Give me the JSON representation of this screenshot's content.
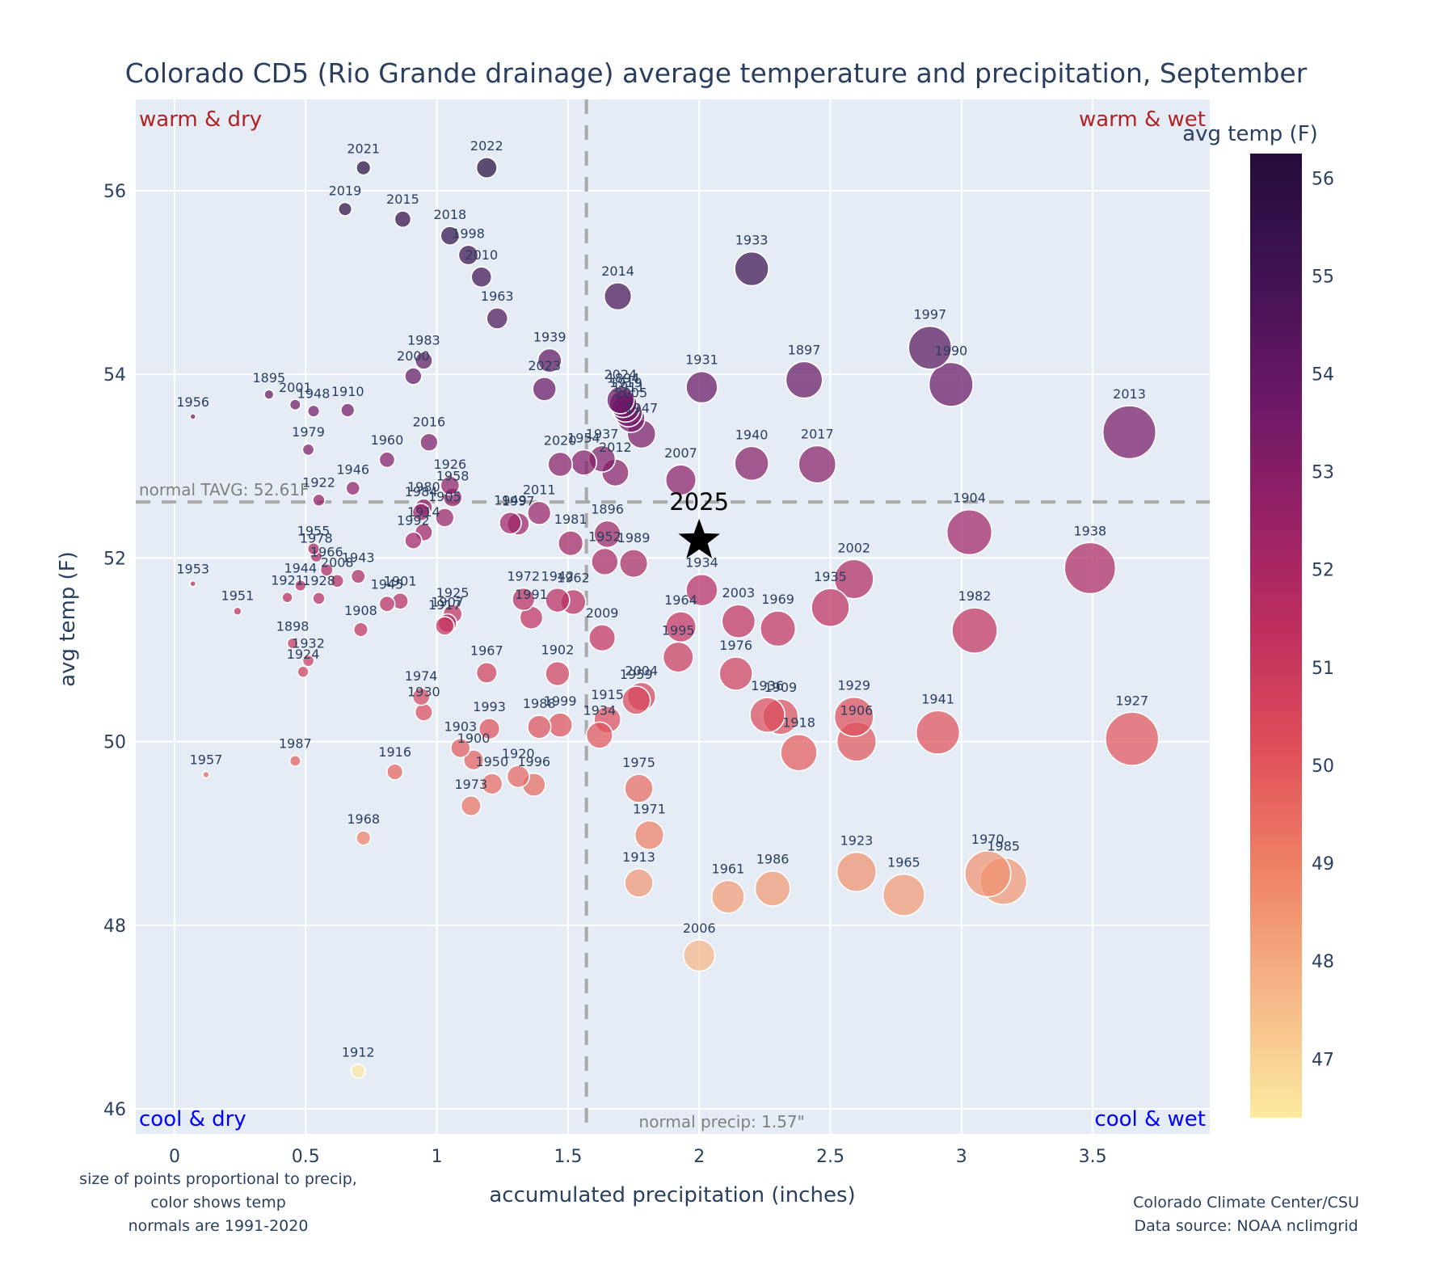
{
  "chart_data": {
    "type": "scatter",
    "title": "Colorado CD5 (Rio Grande drainage) average temperature and precipitation, September",
    "xlabel": "accumulated precipitation (inches)",
    "ylabel": "avg temp (F)",
    "xlim": [
      -0.15,
      3.95
    ],
    "ylim": [
      45.7,
      56.99
    ],
    "xticks": [
      0,
      0.5,
      1,
      1.5,
      2,
      2.5,
      3,
      3.5
    ],
    "xtick_labels": [
      "0",
      "0.5",
      "1",
      "1.5",
      "2",
      "2.5",
      "3",
      "3.5"
    ],
    "yticks": [
      46,
      48,
      50,
      52,
      54,
      56
    ],
    "ytick_labels": [
      "46",
      "48",
      "50",
      "52",
      "54",
      "56"
    ],
    "grid": true,
    "normal_temp": 52.61,
    "normal_temp_label": "normal TAVG: 52.61F",
    "normal_precip": 1.57,
    "normal_precip_label": "normal precip: 1.57\"",
    "quadrant_labels": {
      "top_left": "warm & dry",
      "top_right": "warm & wet",
      "bottom_left": "cool & dry",
      "bottom_right": "cool & wet"
    },
    "colorbar": {
      "title": "avg temp (F)",
      "range": [
        46.4,
        56.25
      ],
      "ticks": [
        47,
        48,
        49,
        50,
        51,
        52,
        53,
        54,
        55,
        56
      ],
      "tick_labels": [
        "47",
        "48",
        "49",
        "50",
        "51",
        "52",
        "53",
        "54",
        "55",
        "56"
      ],
      "colorscale": [
        "#fcea9f",
        "#f6b889",
        "#ef8566",
        "#e0525a",
        "#c1305e",
        "#962166",
        "#6a1866",
        "#3f1351",
        "#240c3c"
      ]
    },
    "highlight": {
      "label": "2025",
      "x": 2.0,
      "y": 52.19,
      "marker": "star",
      "color": "#000000"
    },
    "footnote_left": [
      "size of points proportional to precip,",
      "color shows temp",
      "normals are 1991-2020"
    ],
    "footnote_right": [
      "Colorado Climate Center/CSU",
      "Data source: NOAA nclimgrid"
    ],
    "points": [
      {
        "year": "2021",
        "x": 0.72,
        "y": 56.25
      },
      {
        "year": "2022",
        "x": 1.19,
        "y": 56.25
      },
      {
        "year": "2019",
        "x": 0.65,
        "y": 55.8
      },
      {
        "year": "2015",
        "x": 0.87,
        "y": 55.69
      },
      {
        "year": "2018",
        "x": 1.05,
        "y": 55.51
      },
      {
        "year": "1998",
        "x": 1.12,
        "y": 55.3
      },
      {
        "year": "2010",
        "x": 1.17,
        "y": 55.06
      },
      {
        "year": "1963",
        "x": 1.23,
        "y": 54.61
      },
      {
        "year": "2014",
        "x": 1.69,
        "y": 54.85
      },
      {
        "year": "1933",
        "x": 2.2,
        "y": 55.15
      },
      {
        "year": "1997",
        "x": 2.88,
        "y": 54.29
      },
      {
        "year": "1990",
        "x": 2.96,
        "y": 53.89
      },
      {
        "year": "1897",
        "x": 2.4,
        "y": 53.94
      },
      {
        "year": "1931",
        "x": 2.01,
        "y": 53.86
      },
      {
        "year": "1983",
        "x": 0.95,
        "y": 54.15
      },
      {
        "year": "2000",
        "x": 0.91,
        "y": 53.98
      },
      {
        "year": "1939",
        "x": 1.43,
        "y": 54.15
      },
      {
        "year": "2023",
        "x": 1.41,
        "y": 53.84
      },
      {
        "year": "1895",
        "x": 0.36,
        "y": 53.78
      },
      {
        "year": "2001",
        "x": 0.46,
        "y": 53.67
      },
      {
        "year": "1948",
        "x": 0.53,
        "y": 53.6
      },
      {
        "year": "1910",
        "x": 0.66,
        "y": 53.61
      },
      {
        "year": "1956",
        "x": 0.07,
        "y": 53.54
      },
      {
        "year": "2024",
        "x": 1.7,
        "y": 53.72
      },
      {
        "year": "1894",
        "x": 1.71,
        "y": 53.68
      },
      {
        "year": "1919",
        "x": 1.72,
        "y": 53.63
      },
      {
        "year": "1911",
        "x": 1.73,
        "y": 53.58
      },
      {
        "year": "2005",
        "x": 1.74,
        "y": 53.52
      },
      {
        "year": "1947",
        "x": 1.78,
        "y": 53.35
      },
      {
        "year": "2013",
        "x": 3.64,
        "y": 53.37
      },
      {
        "year": "1979",
        "x": 0.51,
        "y": 53.18
      },
      {
        "year": "1960",
        "x": 0.81,
        "y": 53.07
      },
      {
        "year": "2016",
        "x": 0.97,
        "y": 53.26
      },
      {
        "year": "2020",
        "x": 1.47,
        "y": 53.02
      },
      {
        "year": "1954",
        "x": 1.56,
        "y": 53.04
      },
      {
        "year": "1937",
        "x": 1.63,
        "y": 53.08
      },
      {
        "year": "2012",
        "x": 1.68,
        "y": 52.93
      },
      {
        "year": "1940",
        "x": 2.2,
        "y": 53.03
      },
      {
        "year": "2017",
        "x": 2.45,
        "y": 53.02
      },
      {
        "year": "2007",
        "x": 1.93,
        "y": 52.85
      },
      {
        "year": "1946",
        "x": 0.68,
        "y": 52.76
      },
      {
        "year": "1926",
        "x": 1.05,
        "y": 52.79
      },
      {
        "year": "1958",
        "x": 1.06,
        "y": 52.66
      },
      {
        "year": "1922",
        "x": 0.55,
        "y": 52.63
      },
      {
        "year": "1980",
        "x": 0.95,
        "y": 52.55
      },
      {
        "year": "1984",
        "x": 0.94,
        "y": 52.5
      },
      {
        "year": "1905",
        "x": 1.03,
        "y": 52.44
      },
      {
        "year": "1914",
        "x": 0.95,
        "y": 52.28
      },
      {
        "year": "1992",
        "x": 0.91,
        "y": 52.19
      },
      {
        "year": "1949",
        "x": 1.28,
        "y": 52.38
      },
      {
        "year": "1997b",
        "x": 1.31,
        "y": 52.37
      },
      {
        "year": "2011",
        "x": 1.39,
        "y": 52.49
      },
      {
        "year": "1981",
        "x": 1.51,
        "y": 52.16
      },
      {
        "year": "1896",
        "x": 1.65,
        "y": 52.26
      },
      {
        "year": "1952",
        "x": 1.64,
        "y": 51.96
      },
      {
        "year": "1989",
        "x": 1.75,
        "y": 51.94
      },
      {
        "year": "1938",
        "x": 3.49,
        "y": 51.89
      },
      {
        "year": "1904",
        "x": 3.03,
        "y": 52.28
      },
      {
        "year": "1955",
        "x": 0.53,
        "y": 52.1
      },
      {
        "year": "1978",
        "x": 0.54,
        "y": 52.02
      },
      {
        "year": "1966",
        "x": 0.58,
        "y": 51.87
      },
      {
        "year": "2008",
        "x": 0.62,
        "y": 51.75
      },
      {
        "year": "1943",
        "x": 0.7,
        "y": 51.8
      },
      {
        "year": "1953",
        "x": 0.07,
        "y": 51.72
      },
      {
        "year": "1944",
        "x": 0.48,
        "y": 51.7
      },
      {
        "year": "1921",
        "x": 0.43,
        "y": 51.57
      },
      {
        "year": "1928",
        "x": 0.55,
        "y": 51.56
      },
      {
        "year": "1945",
        "x": 0.81,
        "y": 51.5
      },
      {
        "year": "1901",
        "x": 0.86,
        "y": 51.53
      },
      {
        "year": "1951",
        "x": 0.24,
        "y": 51.42
      },
      {
        "year": "1908",
        "x": 0.71,
        "y": 51.22
      },
      {
        "year": "1925",
        "x": 1.06,
        "y": 51.39
      },
      {
        "year": "1907",
        "x": 1.04,
        "y": 51.29
      },
      {
        "year": "1917",
        "x": 1.03,
        "y": 51.26
      },
      {
        "year": "1972",
        "x": 1.33,
        "y": 51.55
      },
      {
        "year": "1991",
        "x": 1.36,
        "y": 51.35
      },
      {
        "year": "1942",
        "x": 1.46,
        "y": 51.54
      },
      {
        "year": "1962",
        "x": 1.52,
        "y": 51.52
      },
      {
        "year": "2009",
        "x": 1.63,
        "y": 51.13
      },
      {
        "year": "1934b",
        "x": 2.01,
        "y": 51.65
      },
      {
        "year": "1964",
        "x": 1.93,
        "y": 51.25
      },
      {
        "year": "1995",
        "x": 1.92,
        "y": 50.92
      },
      {
        "year": "2003",
        "x": 2.15,
        "y": 51.31
      },
      {
        "year": "1969",
        "x": 2.3,
        "y": 51.23
      },
      {
        "year": "1935",
        "x": 2.5,
        "y": 51.46
      },
      {
        "year": "2002",
        "x": 2.59,
        "y": 51.77
      },
      {
        "year": "1982",
        "x": 3.05,
        "y": 51.21
      },
      {
        "year": "1976",
        "x": 2.14,
        "y": 50.74
      },
      {
        "year": "1898",
        "x": 0.45,
        "y": 51.07
      },
      {
        "year": "1932",
        "x": 0.51,
        "y": 50.88
      },
      {
        "year": "1924",
        "x": 0.49,
        "y": 50.76
      },
      {
        "year": "1967",
        "x": 1.19,
        "y": 50.75
      },
      {
        "year": "1902",
        "x": 1.46,
        "y": 50.74
      },
      {
        "year": "1974",
        "x": 0.94,
        "y": 50.49
      },
      {
        "year": "1930",
        "x": 0.95,
        "y": 50.32
      },
      {
        "year": "1993",
        "x": 1.2,
        "y": 50.14
      },
      {
        "year": "1988",
        "x": 1.39,
        "y": 50.16
      },
      {
        "year": "1999",
        "x": 1.47,
        "y": 50.18
      },
      {
        "year": "1915",
        "x": 1.65,
        "y": 50.24
      },
      {
        "year": "1934",
        "x": 1.62,
        "y": 50.07
      },
      {
        "year": "2004",
        "x": 1.78,
        "y": 50.49
      },
      {
        "year": "1959",
        "x": 1.76,
        "y": 50.45
      },
      {
        "year": "1936",
        "x": 2.26,
        "y": 50.29
      },
      {
        "year": "1909",
        "x": 2.31,
        "y": 50.27
      },
      {
        "year": "1918",
        "x": 2.38,
        "y": 49.88
      },
      {
        "year": "1929",
        "x": 2.59,
        "y": 50.27
      },
      {
        "year": "1906",
        "x": 2.6,
        "y": 50.0
      },
      {
        "year": "1941",
        "x": 2.91,
        "y": 50.1
      },
      {
        "year": "1927",
        "x": 3.65,
        "y": 50.03
      },
      {
        "year": "1903",
        "x": 1.09,
        "y": 49.93
      },
      {
        "year": "1900",
        "x": 1.14,
        "y": 49.8
      },
      {
        "year": "1950",
        "x": 1.21,
        "y": 49.54
      },
      {
        "year": "1920",
        "x": 1.31,
        "y": 49.62
      },
      {
        "year": "1996",
        "x": 1.37,
        "y": 49.53
      },
      {
        "year": "1973",
        "x": 1.13,
        "y": 49.3
      },
      {
        "year": "1987",
        "x": 0.46,
        "y": 49.79
      },
      {
        "year": "1957",
        "x": 0.12,
        "y": 49.64
      },
      {
        "year": "1916",
        "x": 0.84,
        "y": 49.67
      },
      {
        "year": "1975",
        "x": 1.77,
        "y": 49.49
      },
      {
        "year": "1971",
        "x": 1.81,
        "y": 48.98
      },
      {
        "year": "1968",
        "x": 0.72,
        "y": 48.95
      },
      {
        "year": "1913",
        "x": 1.77,
        "y": 48.46
      },
      {
        "year": "1961",
        "x": 2.11,
        "y": 48.31
      },
      {
        "year": "1986",
        "x": 2.28,
        "y": 48.4
      },
      {
        "year": "1923",
        "x": 2.6,
        "y": 48.58
      },
      {
        "year": "1965",
        "x": 2.78,
        "y": 48.33
      },
      {
        "year": "1970",
        "x": 3.1,
        "y": 48.56
      },
      {
        "year": "1985",
        "x": 3.16,
        "y": 48.48
      },
      {
        "year": "2006",
        "x": 2.0,
        "y": 47.67
      },
      {
        "year": "1912",
        "x": 0.7,
        "y": 46.41
      }
    ]
  }
}
